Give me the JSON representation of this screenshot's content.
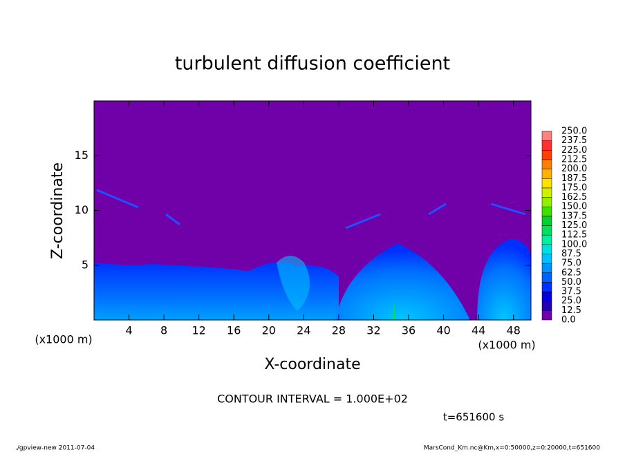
{
  "chart_data": {
    "type": "contour",
    "title": "turbulent diffusion coefficient",
    "xlabel": "X-coordinate",
    "ylabel": "Z-coordinate",
    "x_unit": "(x1000 m)",
    "y_unit": "(x1000 m)",
    "xlim": [
      0,
      50
    ],
    "ylim": [
      0,
      20
    ],
    "xticks": [
      4,
      8,
      12,
      16,
      20,
      24,
      28,
      32,
      36,
      40,
      44,
      48
    ],
    "yticks": [
      5,
      10,
      15
    ],
    "annotations": [
      "CONTOUR INTERVAL = 1.000E+02",
      "t=651600 s"
    ],
    "footer_left": "./gpview-new   2011-07-04",
    "footer_right": "MarsCond_Km.nc@Km,x=0:50000,z=0:20000,t=651600",
    "colorbar": {
      "levels": [
        {
          "value": 0,
          "label": "0.0"
        },
        {
          "value": 12.5,
          "label": "12.5"
        },
        {
          "value": 25,
          "label": "25.0"
        },
        {
          "value": 37.5,
          "label": "37.5"
        },
        {
          "value": 50,
          "label": "50.0"
        },
        {
          "value": 62.5,
          "label": "62.5"
        },
        {
          "value": 75,
          "label": "75.0"
        },
        {
          "value": 87.5,
          "label": "87.5"
        },
        {
          "value": 100,
          "label": "100.0"
        },
        {
          "value": 112.5,
          "label": "112.5"
        },
        {
          "value": 125,
          "label": "125.0"
        },
        {
          "value": 137.5,
          "label": "137.5"
        },
        {
          "value": 150,
          "label": "150.0"
        },
        {
          "value": 162.5,
          "label": "162.5"
        },
        {
          "value": 175,
          "label": "175.0"
        },
        {
          "value": 187.5,
          "label": "187.5"
        },
        {
          "value": 200,
          "label": "200.0"
        },
        {
          "value": 212.5,
          "label": "212.5"
        },
        {
          "value": 225,
          "label": "225.0"
        },
        {
          "value": 237.5,
          "label": "237.5"
        },
        {
          "value": 250,
          "label": "250.0"
        }
      ],
      "colors": [
        "#7000a8",
        "#2000b0",
        "#0000dc",
        "#0030ff",
        "#0060ff",
        "#0090ff",
        "#00c0ff",
        "#00e0e0",
        "#00f0a0",
        "#00e060",
        "#00d030",
        "#40e000",
        "#90f000",
        "#d0f000",
        "#ffe000",
        "#ffb000",
        "#ff8000",
        "#ff4000",
        "#ff3030",
        "#ff8080"
      ]
    }
  }
}
